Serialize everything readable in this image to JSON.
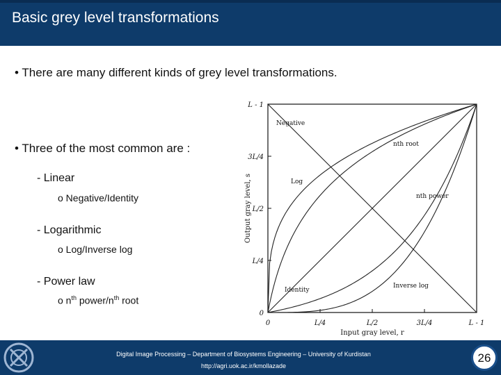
{
  "slide": {
    "title": "Basic grey level transformations",
    "bullet1": "• There are many different kinds of grey level transformations.",
    "bullet2": "• Three of the most common are :",
    "list": [
      {
        "label": "- Linear",
        "sub": "o Negative/Identity"
      },
      {
        "label": "- Logarithmic",
        "sub": "o Log/Inverse log"
      },
      {
        "label": "- Power law",
        "sub_bullet": "o",
        "sub_pre": " n",
        "sub_sup1": "th",
        "sub_mid": " power/n",
        "sub_sup2": "th",
        "sub_post": " root"
      }
    ]
  },
  "chart_data": {
    "type": "line",
    "title": "",
    "xlabel": "Input gray level, r",
    "ylabel": "Output gray level, s",
    "x_ticks": [
      "0",
      "L/4",
      "L/2",
      "3L/4",
      "L - 1"
    ],
    "y_ticks": [
      "0",
      "L/4",
      "L/2",
      "3L/4",
      "L - 1"
    ],
    "xlim": [
      0,
      1
    ],
    "ylim": [
      0,
      1
    ],
    "series": [
      {
        "name": "Negative",
        "x": [
          0,
          1
        ],
        "y": [
          1,
          0
        ]
      },
      {
        "name": "Identity",
        "x": [
          0,
          1
        ],
        "y": [
          0,
          1
        ]
      },
      {
        "name": "Log",
        "curve": "log"
      },
      {
        "name": "Inverse log",
        "curve": "inverse log"
      },
      {
        "name": "nth root",
        "curve": "nth root"
      },
      {
        "name": "nth power",
        "curve": "nth power"
      }
    ]
  },
  "footer": {
    "line1": "Digital Image Processing – Department of Biosystems Engineering – University of Kurdistan",
    "line2": "http://agri.uok.ac.ir/kmollazade",
    "page": "26"
  }
}
